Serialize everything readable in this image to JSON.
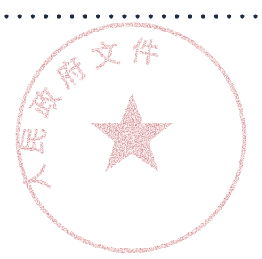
{
  "dot_leader": {
    "color": "#1e2a44",
    "count": 20
  },
  "seal": {
    "ink_color": "#b5343a",
    "text": "人民政府文件",
    "center_symbol": "star-icon"
  }
}
